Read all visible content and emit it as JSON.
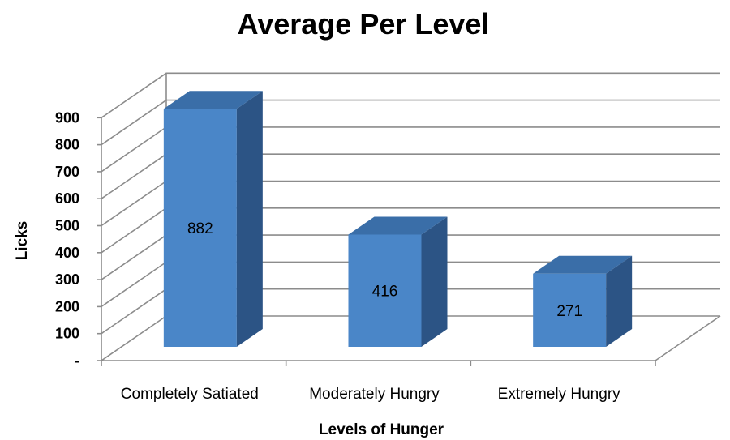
{
  "chart_data": {
    "type": "bar",
    "title": "Average Per Level",
    "xlabel": "Levels of Hunger",
    "ylabel": "Licks",
    "categories": [
      "Completely Satiated",
      "Moderately Hungry",
      "Extremely Hungry"
    ],
    "values": [
      882,
      416,
      271
    ],
    "data_labels": [
      "882",
      "416",
      "271"
    ],
    "ylim": [
      0,
      900
    ],
    "yticks": [
      0,
      100,
      200,
      300,
      400,
      500,
      600,
      700,
      800,
      900
    ],
    "ytick_labels": [
      "-",
      "100",
      "200",
      "300",
      "400",
      "500",
      "600",
      "700",
      "800",
      "900"
    ],
    "grid": true,
    "style": "3d-column",
    "colors": {
      "front": "#4a86c8",
      "top": "#3a6ea8",
      "side": "#2c5485"
    }
  }
}
